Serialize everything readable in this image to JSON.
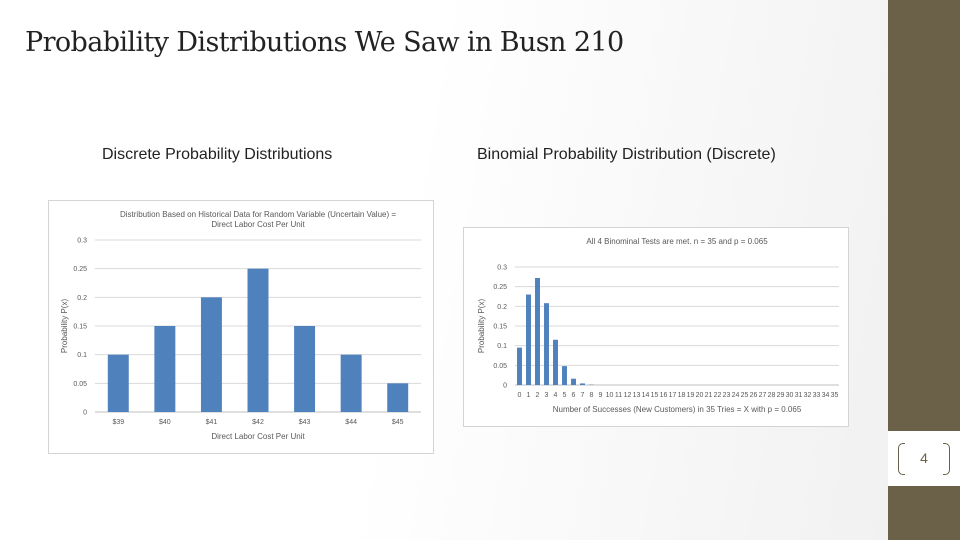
{
  "slide": {
    "title": "Probability Distributions We Saw in Busn 210",
    "left_heading": "Discrete Probability Distributions",
    "right_heading": "Binomial Probability Distribution (Discrete)",
    "page_number": "4"
  },
  "colors": {
    "bar": "#4f81bd",
    "band": "#6b6048"
  },
  "chart_data": [
    {
      "type": "bar",
      "title": "Distribution Based on Historical Data for Random Variable (Uncertain Value) = Direct Labor Cost Per Unit",
      "title_lines": [
        "Distribution Based on Historical Data for Random Variable (Uncertain Value) =",
        "Direct Labor Cost Per Unit"
      ],
      "xlabel": "Direct Labor Cost Per Unit",
      "ylabel": "Probability P(x)",
      "categories": [
        "$39",
        "$40",
        "$41",
        "$42",
        "$43",
        "$44",
        "$45"
      ],
      "values": [
        0.1,
        0.15,
        0.2,
        0.25,
        0.15,
        0.1,
        0.05
      ],
      "ylim": [
        0,
        0.3
      ],
      "yticks": [
        "0",
        "0.05",
        "0.1",
        "0.15",
        "0.2",
        "0.25",
        "0.3"
      ],
      "grid": true,
      "legend": "none"
    },
    {
      "type": "bar",
      "title": "All 4 Binominal Tests are met. n = 35 and p = 0.065",
      "xlabel": "Number of Successes (New Customers) in 35 Tries = X with p = 0.065",
      "ylabel": "Probability P(x)",
      "categories": [
        "0",
        "1",
        "2",
        "3",
        "4",
        "5",
        "6",
        "7",
        "8",
        "9",
        "10",
        "11",
        "12",
        "13",
        "14",
        "15",
        "16",
        "17",
        "18",
        "19",
        "20",
        "21",
        "22",
        "23",
        "24",
        "25",
        "26",
        "27",
        "28",
        "29",
        "30",
        "31",
        "32",
        "33",
        "34",
        "35"
      ],
      "values": [
        0.095,
        0.23,
        0.272,
        0.208,
        0.115,
        0.048,
        0.016,
        0.004,
        0.001,
        0,
        0,
        0,
        0,
        0,
        0,
        0,
        0,
        0,
        0,
        0,
        0,
        0,
        0,
        0,
        0,
        0,
        0,
        0,
        0,
        0,
        0,
        0,
        0,
        0,
        0,
        0
      ],
      "ylim": [
        0,
        0.3
      ],
      "yticks": [
        "0",
        "0.05",
        "0.1",
        "0.15",
        "0.2",
        "0.25",
        "0.3"
      ],
      "grid": true,
      "legend": "none"
    }
  ]
}
